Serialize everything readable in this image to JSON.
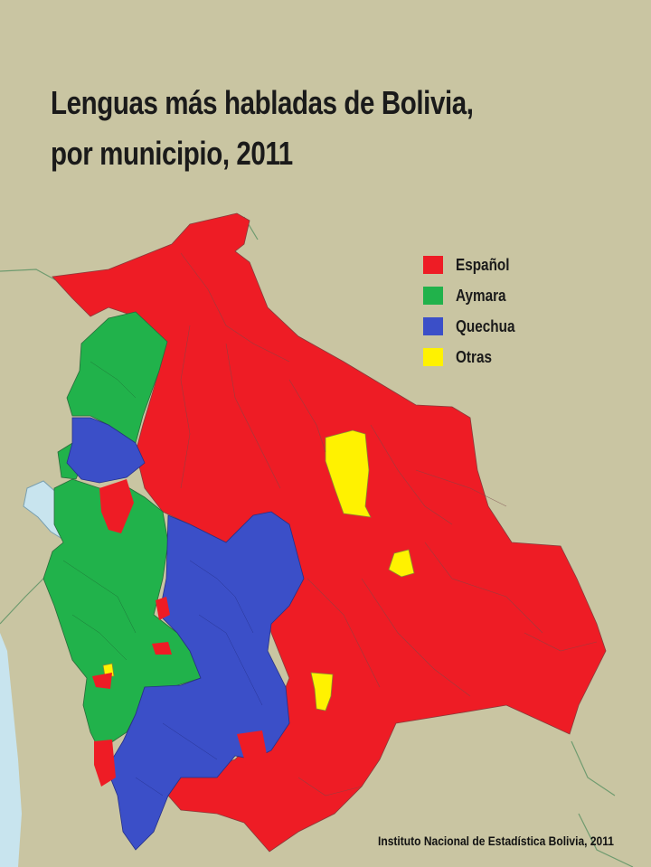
{
  "title": {
    "line1": "Lenguas más habladas de Bolivia,",
    "line2": "por municipio, 2011"
  },
  "legend": {
    "items": [
      {
        "label": "Español",
        "color": "#ee1c25"
      },
      {
        "label": "Aymara",
        "color": "#21b24b"
      },
      {
        "label": "Quechua",
        "color": "#3b4fc8"
      },
      {
        "label": "Otras",
        "color": "#fff200"
      }
    ]
  },
  "source": "Instituto Nacional de Estadística Bolivia, 2011",
  "colors": {
    "background": "#c9c5a2",
    "water": "#c8e4ee",
    "border": "#5a7a5a"
  }
}
